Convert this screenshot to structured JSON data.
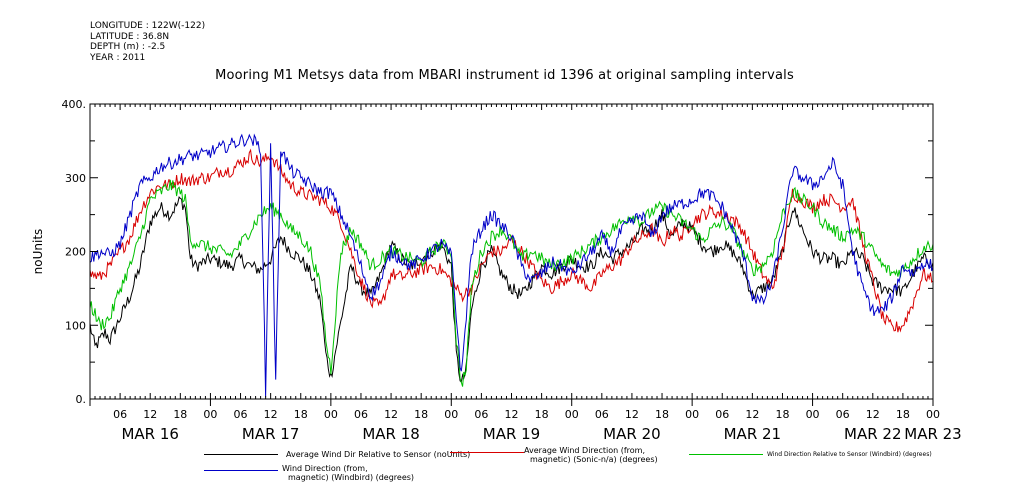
{
  "meta": {
    "longitude": "LONGITUDE : 122W(-122)",
    "latitude": "LATITUDE : 36.8N",
    "depth": "DEPTH (m) : -2.5",
    "year": "YEAR : 2011"
  },
  "chart_data": {
    "type": "line",
    "title": "Mooring M1 Metsys data from MBARI instrument id 1396 at original sampling intervals",
    "ylabel": "noUnits",
    "xlabel": "",
    "ylim": [
      0,
      400
    ],
    "yticks": [
      0,
      100,
      200,
      300,
      400
    ],
    "yticklabels": [
      "0.",
      "100",
      "200",
      "300",
      "400."
    ],
    "xlim_hours": [
      0,
      168
    ],
    "hour_ticks": [
      {
        "h": 6,
        "label": "06"
      },
      {
        "h": 12,
        "label": "12"
      },
      {
        "h": 18,
        "label": "18"
      },
      {
        "h": 24,
        "label": "00"
      },
      {
        "h": 30,
        "label": "06"
      },
      {
        "h": 36,
        "label": "12"
      },
      {
        "h": 42,
        "label": "18"
      },
      {
        "h": 48,
        "label": "00"
      },
      {
        "h": 54,
        "label": "06"
      },
      {
        "h": 60,
        "label": "12"
      },
      {
        "h": 66,
        "label": "18"
      },
      {
        "h": 72,
        "label": "00"
      },
      {
        "h": 78,
        "label": "06"
      },
      {
        "h": 84,
        "label": "12"
      },
      {
        "h": 90,
        "label": "18"
      },
      {
        "h": 96,
        "label": "00"
      },
      {
        "h": 102,
        "label": "06"
      },
      {
        "h": 108,
        "label": "12"
      },
      {
        "h": 114,
        "label": "18"
      },
      {
        "h": 120,
        "label": "00"
      },
      {
        "h": 126,
        "label": "06"
      },
      {
        "h": 132,
        "label": "12"
      },
      {
        "h": 138,
        "label": "18"
      },
      {
        "h": 144,
        "label": "00"
      },
      {
        "h": 150,
        "label": "06"
      },
      {
        "h": 156,
        "label": "12"
      },
      {
        "h": 162,
        "label": "18"
      },
      {
        "h": 168,
        "label": "00"
      }
    ],
    "day_labels": [
      {
        "h": 12,
        "label": "MAR 16"
      },
      {
        "h": 36,
        "label": "MAR 17"
      },
      {
        "h": 60,
        "label": "MAR 18"
      },
      {
        "h": 84,
        "label": "MAR 19"
      },
      {
        "h": 108,
        "label": "MAR 20"
      },
      {
        "h": 132,
        "label": "MAR 21"
      },
      {
        "h": 156,
        "label": "MAR 22"
      },
      {
        "h": 168,
        "label": "MAR 23"
      }
    ],
    "grid": false,
    "series": [
      {
        "name": "Average Wind Dir Relative to Sensor (noUnits)",
        "color": "#000000",
        "x": [
          0,
          1,
          2,
          3,
          4,
          6,
          8,
          10,
          12,
          14,
          16,
          18,
          19,
          20,
          21,
          24,
          28,
          30,
          32,
          34,
          36,
          38,
          40,
          42,
          44,
          46,
          47,
          48,
          52,
          54,
          56,
          58,
          60,
          62,
          64,
          66,
          68,
          70,
          72,
          73,
          74,
          75,
          76,
          78,
          80,
          82,
          84,
          86,
          88,
          90,
          92,
          94,
          96,
          98,
          100,
          102,
          104,
          106,
          108,
          110,
          112,
          114,
          116,
          118,
          120,
          122,
          124,
          126,
          128,
          130,
          132,
          134,
          136,
          138,
          140,
          142,
          144,
          146,
          148,
          150,
          152,
          154,
          156,
          158,
          160,
          162,
          164,
          166,
          168
        ],
        "y": [
          100,
          70,
          80,
          90,
          80,
          110,
          140,
          180,
          240,
          260,
          250,
          270,
          260,
          190,
          180,
          190,
          180,
          190,
          180,
          175,
          190,
          220,
          200,
          190,
          170,
          130,
          60,
          30,
          180,
          150,
          140,
          170,
          210,
          190,
          180,
          190,
          200,
          210,
          180,
          60,
          20,
          40,
          120,
          180,
          200,
          170,
          150,
          140,
          160,
          180,
          170,
          180,
          190,
          180,
          180,
          200,
          190,
          200,
          210,
          230,
          230,
          250,
          220,
          240,
          230,
          210,
          200,
          210,
          200,
          180,
          140,
          150,
          160,
          200,
          260,
          230,
          200,
          190,
          190,
          180,
          200,
          190,
          160,
          150,
          150,
          145,
          170,
          190,
          185
        ]
      },
      {
        "name": "Average Wind Direction (from, magnetic) (Sonic-n/a) (degrees)",
        "color": "#d80000",
        "x": [
          0,
          2,
          4,
          6,
          8,
          10,
          12,
          14,
          16,
          18,
          20,
          22,
          24,
          26,
          28,
          30,
          32,
          34,
          36,
          38,
          40,
          42,
          44,
          46,
          48,
          50,
          52,
          54,
          56,
          58,
          60,
          62,
          64,
          66,
          68,
          70,
          72,
          74,
          76,
          78,
          80,
          82,
          84,
          86,
          88,
          90,
          92,
          94,
          96,
          98,
          100,
          102,
          104,
          106,
          108,
          110,
          112,
          114,
          116,
          118,
          120,
          122,
          124,
          126,
          128,
          130,
          132,
          134,
          136,
          138,
          140,
          142,
          144,
          146,
          148,
          150,
          152,
          154,
          156,
          158,
          160,
          162,
          164,
          166,
          168
        ],
        "y": [
          170,
          165,
          180,
          200,
          220,
          255,
          280,
          290,
          290,
          300,
          295,
          300,
          300,
          310,
          310,
          320,
          330,
          320,
          330,
          310,
          290,
          280,
          275,
          270,
          260,
          240,
          200,
          160,
          130,
          125,
          170,
          165,
          170,
          175,
          180,
          175,
          160,
          140,
          150,
          180,
          200,
          200,
          215,
          200,
          180,
          160,
          150,
          160,
          170,
          160,
          150,
          170,
          180,
          190,
          210,
          220,
          230,
          210,
          230,
          220,
          240,
          250,
          255,
          250,
          245,
          230,
          200,
          170,
          150,
          200,
          280,
          270,
          260,
          270,
          270,
          260,
          270,
          210,
          160,
          110,
          95,
          100,
          130,
          170,
          160
        ]
      },
      {
        "name": "Wind Direction Relative to Sensor (Windbird) (degrees)",
        "color": "#00c000",
        "x": [
          0,
          2,
          4,
          6,
          8,
          10,
          12,
          14,
          16,
          18,
          19,
          20,
          22,
          24,
          26,
          28,
          30,
          32,
          34,
          36,
          38,
          40,
          42,
          44,
          46,
          47,
          48,
          50,
          52,
          54,
          56,
          58,
          60,
          62,
          64,
          66,
          68,
          70,
          72,
          73,
          74,
          75,
          76,
          78,
          80,
          82,
          84,
          86,
          88,
          90,
          92,
          94,
          96,
          98,
          100,
          102,
          104,
          106,
          108,
          110,
          112,
          114,
          116,
          118,
          120,
          122,
          124,
          126,
          128,
          130,
          132,
          134,
          136,
          138,
          140,
          142,
          144,
          146,
          148,
          150,
          152,
          154,
          156,
          158,
          160,
          162,
          164,
          166,
          168
        ],
        "y": [
          130,
          100,
          110,
          150,
          180,
          220,
          270,
          280,
          290,
          280,
          270,
          215,
          210,
          205,
          200,
          195,
          210,
          230,
          250,
          260,
          250,
          230,
          220,
          200,
          150,
          80,
          40,
          200,
          230,
          210,
          180,
          190,
          200,
          195,
          190,
          185,
          200,
          210,
          200,
          80,
          20,
          40,
          150,
          200,
          220,
          230,
          215,
          190,
          200,
          190,
          180,
          185,
          190,
          200,
          210,
          220,
          230,
          240,
          250,
          240,
          255,
          260,
          250,
          240,
          230,
          215,
          230,
          240,
          230,
          200,
          175,
          180,
          200,
          250,
          280,
          270,
          260,
          240,
          230,
          220,
          230,
          220,
          200,
          180,
          170,
          175,
          190,
          205,
          210
        ]
      },
      {
        "name": "Wind Direction (from, magnetic) (Windbird) (degrees)",
        "color": "#0000c8",
        "x": [
          0,
          2,
          4,
          6,
          8,
          10,
          12,
          14,
          16,
          18,
          20,
          22,
          24,
          26,
          28,
          30,
          32,
          34,
          35,
          36,
          37,
          38,
          40,
          42,
          44,
          46,
          48,
          50,
          52,
          54,
          56,
          58,
          60,
          62,
          64,
          66,
          68,
          70,
          72,
          74,
          76,
          78,
          80,
          82,
          84,
          86,
          88,
          90,
          92,
          94,
          96,
          98,
          100,
          102,
          104,
          106,
          108,
          110,
          112,
          114,
          116,
          118,
          120,
          122,
          124,
          126,
          128,
          130,
          132,
          134,
          136,
          138,
          140,
          142,
          144,
          146,
          148,
          150,
          152,
          154,
          156,
          158,
          160,
          162,
          164,
          166,
          168
        ],
        "y": [
          190,
          200,
          195,
          210,
          250,
          290,
          300,
          315,
          320,
          325,
          330,
          330,
          335,
          340,
          345,
          350,
          355,
          340,
          10,
          350,
          20,
          340,
          310,
          300,
          290,
          280,
          280,
          250,
          220,
          180,
          140,
          160,
          200,
          190,
          180,
          190,
          200,
          210,
          195,
          30,
          200,
          230,
          250,
          235,
          220,
          180,
          160,
          170,
          185,
          180,
          170,
          185,
          200,
          220,
          200,
          230,
          240,
          250,
          220,
          250,
          260,
          265,
          270,
          280,
          275,
          260,
          230,
          200,
          140,
          130,
          160,
          230,
          310,
          300,
          290,
          300,
          320,
          290,
          200,
          150,
          120,
          120,
          140,
          180,
          170,
          185,
          180
        ]
      }
    ],
    "legend": [
      {
        "line1": "Average Wind Dir Relative to Sensor (noUnits)",
        "line2": ""
      },
      {
        "line1": "Average Wind Direction (from,",
        "line2": "magnetic) (Sonic-n/a) (degrees)"
      },
      {
        "line1": "Wind Direction Relative to Sensor (Windbird) (degrees)",
        "line2": ""
      },
      {
        "line1": "Wind Direction (from,",
        "line2": "magnetic) (Windbird) (degrees)"
      }
    ],
    "legend_colors": [
      "#000000",
      "#d80000",
      "#00c000",
      "#0000c8"
    ]
  }
}
